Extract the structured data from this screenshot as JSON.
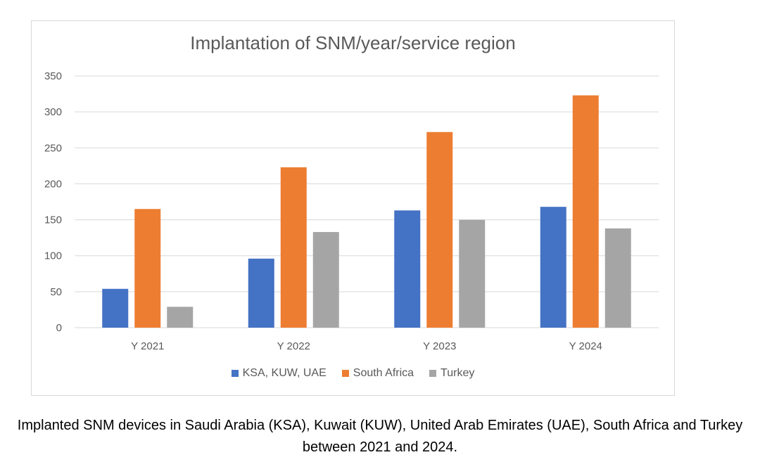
{
  "chart_data": {
    "type": "bar",
    "title": "Implantation of SNM/year/service region",
    "categories": [
      "Y 2021",
      "Y 2022",
      "Y 2023",
      "Y 2024"
    ],
    "series": [
      {
        "name": "KSA, KUW, UAE",
        "values": [
          54,
          96,
          163,
          168
        ],
        "color": "#4472C4"
      },
      {
        "name": "South Africa",
        "values": [
          165,
          223,
          272,
          323
        ],
        "color": "#ED7D31"
      },
      {
        "name": "Turkey",
        "values": [
          29,
          133,
          150,
          138
        ],
        "color": "#A5A5A5"
      }
    ],
    "ylim": [
      0,
      350
    ],
    "yticks": [
      "0",
      "50",
      "100",
      "150",
      "200",
      "250",
      "300",
      "350"
    ],
    "grid": true,
    "legend_position": "bottom"
  },
  "caption": "Implanted SNM devices in Saudi Arabia (KSA), Kuwait (KUW), United Arab Emirates (UAE), South Africa and Turkey between 2021 and 2024."
}
